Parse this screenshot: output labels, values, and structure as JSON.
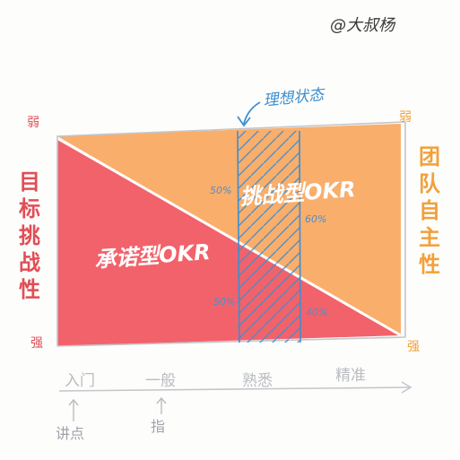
{
  "author": "@大叔杨",
  "ideal_state": "理想状态",
  "left_axis": {
    "title_chars": [
      "目",
      "标",
      "挑",
      "战",
      "性"
    ],
    "weak": "弱",
    "strong": "强"
  },
  "right_axis": {
    "title_chars": [
      "团",
      "队",
      "自",
      "主",
      "性"
    ],
    "weak": "弱",
    "strong": "强"
  },
  "regions": {
    "challenge": "挑战型OKR",
    "commitment": "承诺型OKR"
  },
  "percentages": {
    "challenge_left": "50%",
    "challenge_right": "60%",
    "commit_left": "50%",
    "commit_right": "40%"
  },
  "x_axis": {
    "levels": [
      "入门",
      "一般",
      "熟悉",
      "精准"
    ],
    "sub_left": "讲点",
    "sub_right": "指"
  },
  "colors": {
    "challenge": "#f9ae6b",
    "commitment": "#f2626b",
    "ideal": "#3c8fd0",
    "left_accent": "#e24d56",
    "right_accent": "#f2a03a",
    "axis": "#c3c6cc"
  }
}
